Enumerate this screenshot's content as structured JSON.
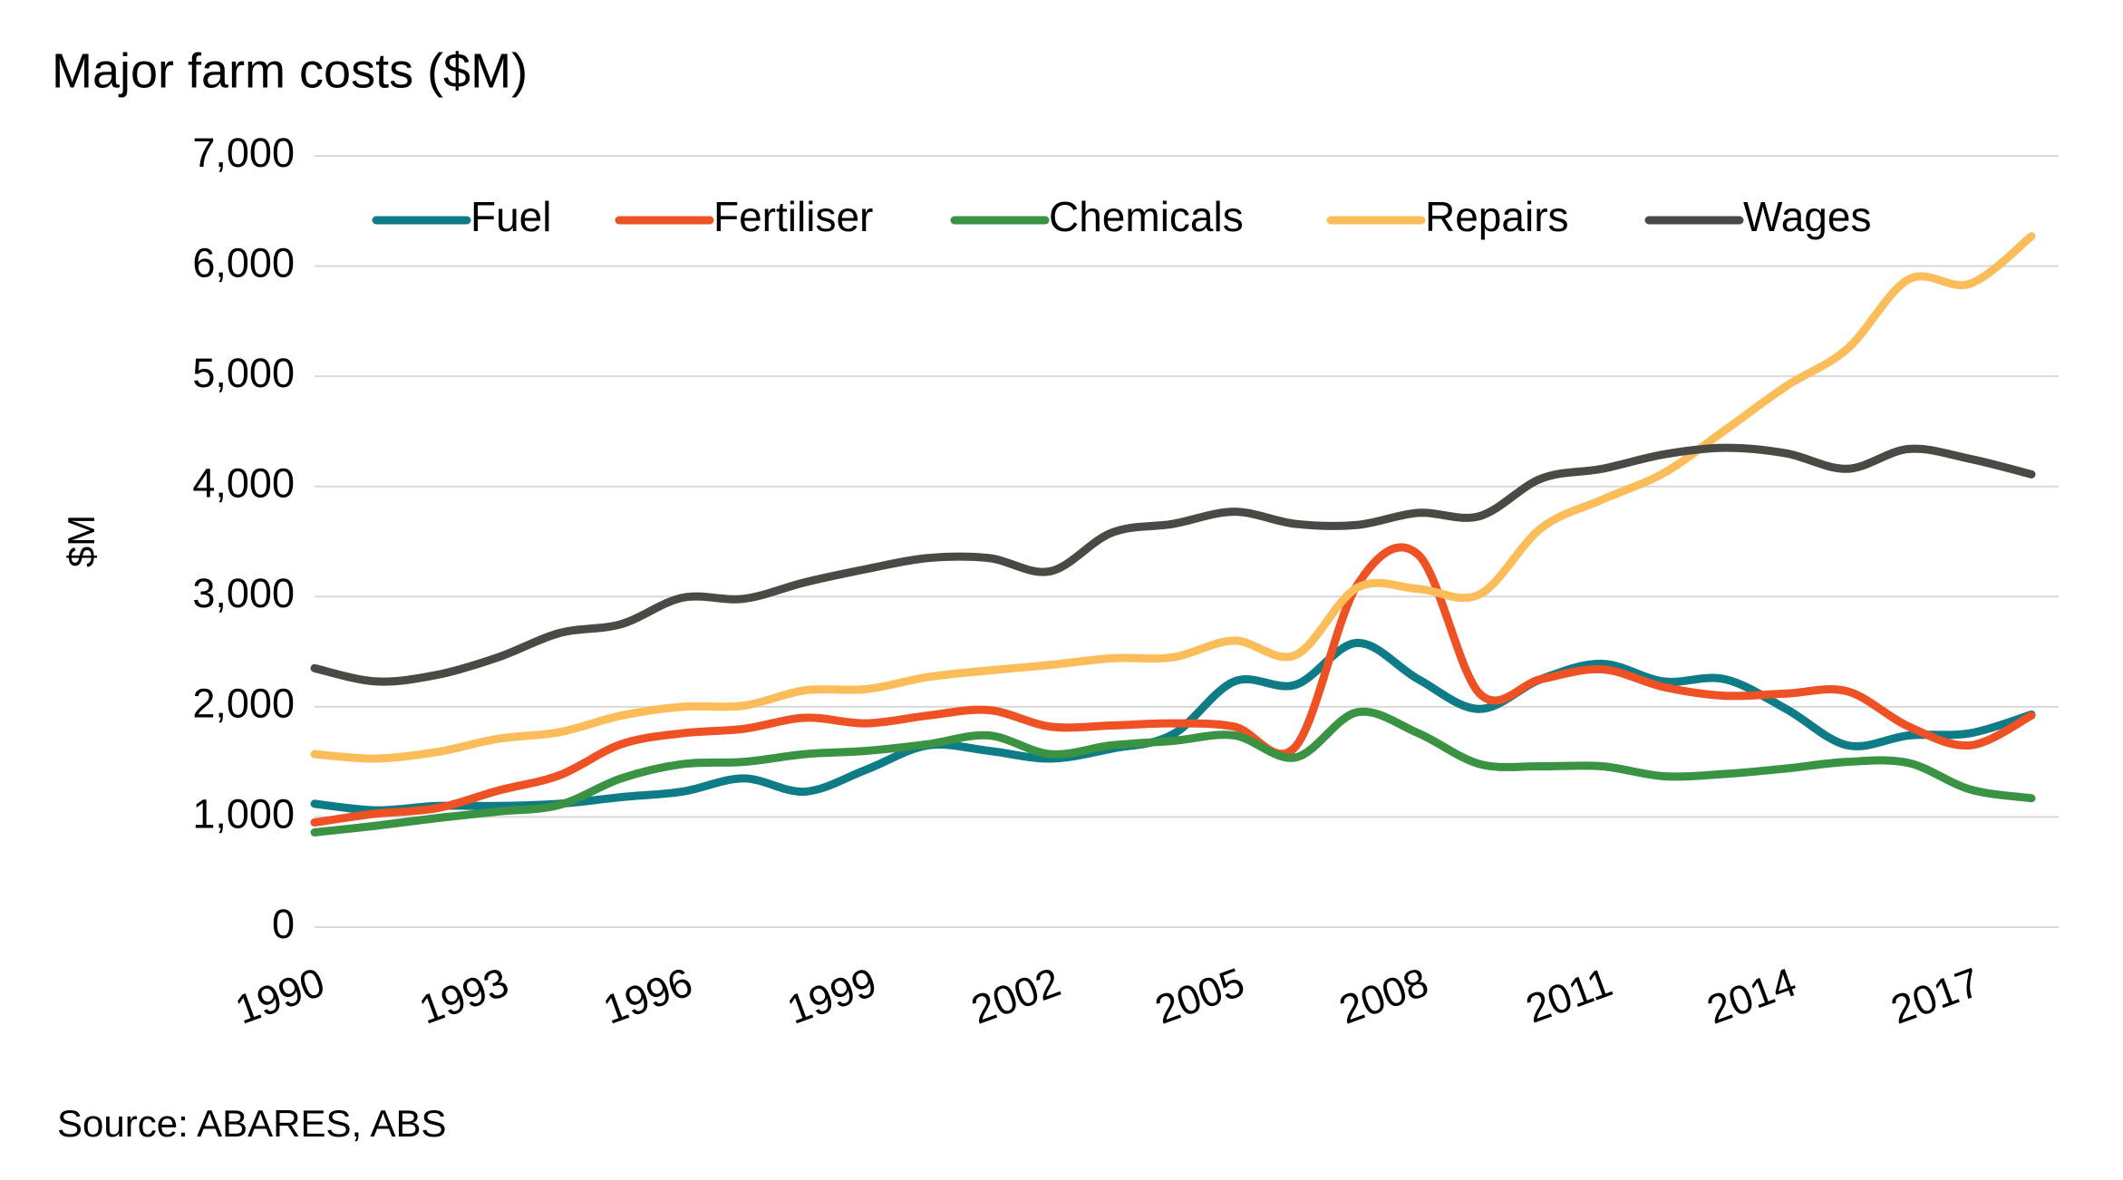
{
  "chart_data": {
    "type": "line",
    "title": "Major farm costs ($M)",
    "y_label": "$M",
    "source": "Source: ABARES, ABS",
    "x": [
      1990,
      1991,
      1992,
      1993,
      1994,
      1995,
      1996,
      1997,
      1998,
      1999,
      2000,
      2001,
      2002,
      2003,
      2004,
      2005,
      2006,
      2007,
      2008,
      2009,
      2010,
      2011,
      2012,
      2013,
      2014,
      2015,
      2016,
      2017,
      2018
    ],
    "xlim": [
      1990,
      2018
    ],
    "xticks": [
      1990,
      1993,
      1996,
      1999,
      2002,
      2005,
      2008,
      2011,
      2014,
      2017
    ],
    "ylim": [
      0,
      7000
    ],
    "yticks": [
      0,
      {
        "value": 1000,
        "label": "1,000"
      },
      {
        "value": 2000,
        "label": "2,000"
      },
      {
        "value": 3000,
        "label": "3,000"
      },
      {
        "value": 4000,
        "label": "4,000"
      },
      {
        "value": 5000,
        "label": "5,000"
      },
      {
        "value": 6000,
        "label": "6,000"
      },
      {
        "value": 7000,
        "label": "7,000"
      }
    ],
    "grid": true,
    "legend": "top",
    "series": [
      {
        "name": "Fuel",
        "color": "#0e7c86",
        "values": [
          1120,
          1060,
          1100,
          1100,
          1120,
          1180,
          1230,
          1350,
          1230,
          1430,
          1650,
          1600,
          1530,
          1620,
          1750,
          2230,
          2200,
          2580,
          2250,
          1980,
          2250,
          2390,
          2230,
          2250,
          1980,
          1650,
          1740,
          1760,
          1930
        ]
      },
      {
        "name": "Fertiliser",
        "color": "#ee5123",
        "values": [
          950,
          1030,
          1080,
          1240,
          1380,
          1660,
          1760,
          1800,
          1900,
          1850,
          1920,
          1970,
          1820,
          1830,
          1850,
          1820,
          1640,
          3100,
          3380,
          2120,
          2250,
          2340,
          2180,
          2100,
          2120,
          2140,
          1820,
          1650,
          1920
        ]
      },
      {
        "name": "Chemicals",
        "color": "#3a9343",
        "values": [
          860,
          920,
          990,
          1050,
          1110,
          1350,
          1480,
          1500,
          1570,
          1600,
          1660,
          1740,
          1570,
          1650,
          1690,
          1740,
          1540,
          1950,
          1760,
          1480,
          1460,
          1460,
          1370,
          1390,
          1440,
          1500,
          1490,
          1250,
          1170
        ]
      },
      {
        "name": "Repairs",
        "color": "#fbbd59",
        "values": [
          1570,
          1530,
          1590,
          1710,
          1770,
          1920,
          2000,
          2010,
          2150,
          2160,
          2270,
          2330,
          2380,
          2440,
          2450,
          2600,
          2470,
          3080,
          3070,
          3020,
          3620,
          3880,
          4120,
          4510,
          4910,
          5250,
          5880,
          5840,
          6270
        ]
      },
      {
        "name": "Wages",
        "color": "#4a4a45",
        "values": [
          2350,
          2230,
          2290,
          2450,
          2670,
          2750,
          2990,
          2980,
          3130,
          3250,
          3350,
          3350,
          3230,
          3580,
          3660,
          3770,
          3660,
          3650,
          3760,
          3730,
          4070,
          4160,
          4290,
          4350,
          4300,
          4160,
          4340,
          4250,
          4110
        ]
      }
    ]
  }
}
